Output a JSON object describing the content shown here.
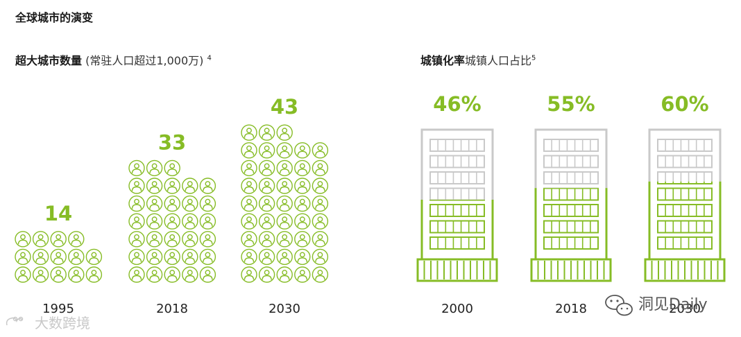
{
  "title": "全球城市的演变",
  "left_title": {
    "bold": "超大城市数量",
    "sub": "(常驻人口超过1,000万)",
    "footnote": "4"
  },
  "right_title": {
    "bold": "城镇化率",
    "sub": "城镇人口占比",
    "footnote": "5"
  },
  "colors": {
    "accent": "#86bc25",
    "gray": "#c9c9c9",
    "text": "#1a1a1a"
  },
  "watermarks": {
    "left": "大数跨境",
    "right": "洞见Daily"
  },
  "chart_data": [
    {
      "type": "bar",
      "title": "超大城市数量",
      "subtitle": "(常驻人口超过1,000万)",
      "categories": [
        "1995",
        "2018",
        "2030"
      ],
      "values": [
        14,
        33,
        43
      ],
      "value_labels": [
        "14",
        "33",
        "43"
      ],
      "icon": "person-icon"
    },
    {
      "type": "bar",
      "title": "城镇化率",
      "subtitle": "城镇人口占比",
      "categories": [
        "2000",
        "2018",
        "2030"
      ],
      "values": [
        46,
        55,
        60
      ],
      "value_labels": [
        "46%",
        "55%",
        "60%"
      ],
      "icon": "building-icon"
    }
  ]
}
